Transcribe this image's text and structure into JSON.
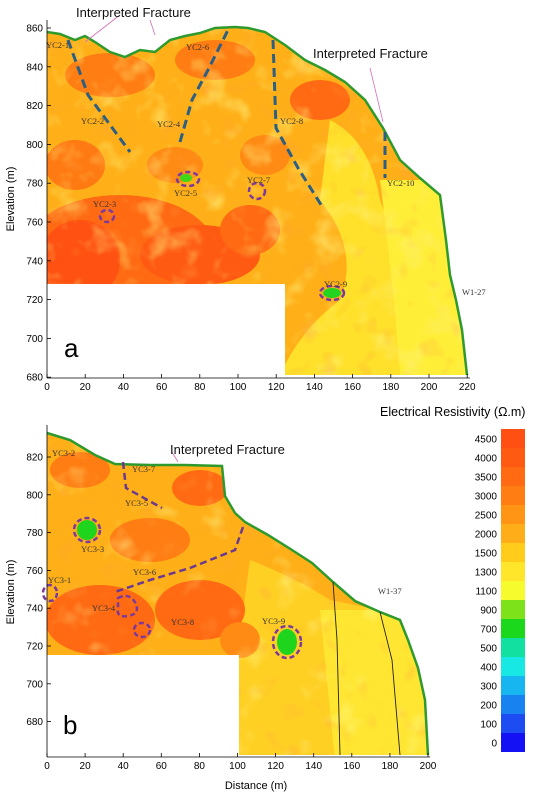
{
  "panel_a": {
    "letter": "a",
    "annotation_left": "Interpreted Fracture",
    "annotation_right": "Interpreted Fracture",
    "ylabel": "Elevation (m)",
    "yticks": [
      "860",
      "840",
      "820",
      "800",
      "780",
      "760",
      "740",
      "720",
      "700",
      "680"
    ],
    "xticks": [
      "0",
      "20",
      "40",
      "60",
      "80",
      "100",
      "120",
      "140",
      "160",
      "180",
      "200",
      "220"
    ],
    "labels": [
      "YC2-1",
      "YC2-2",
      "YC2-4",
      "YC2-6",
      "YC2-8",
      "YC2-5",
      "YC2-7",
      "YC2-3",
      "YC2-9",
      "YC2-10",
      "W1-27"
    ]
  },
  "panel_b": {
    "letter": "b",
    "annotation": "Interpreted Fracture",
    "ylabel": "Elevation (m)",
    "xlabel": "Distance (m)",
    "yticks": [
      "820",
      "800",
      "780",
      "760",
      "740",
      "720",
      "700",
      "680"
    ],
    "xticks": [
      "0",
      "20",
      "40",
      "60",
      "80",
      "100",
      "120",
      "140",
      "160",
      "180",
      "200"
    ],
    "labels": [
      "YC3-2",
      "YC3-7",
      "YC3-5",
      "YC3-3",
      "YC3-6",
      "YC3-1",
      "YC3-4",
      "YC3-8",
      "YC3-9",
      "W1-37"
    ]
  },
  "legend": {
    "title": "Electrical Resistivity (Ω.m)",
    "entries": [
      {
        "label": "4500",
        "color": "#ff4f12"
      },
      {
        "label": "4000",
        "color": "#ff5a12"
      },
      {
        "label": "3500",
        "color": "#ff6a12"
      },
      {
        "label": "3000",
        "color": "#ff7d12"
      },
      {
        "label": "2500",
        "color": "#ff9415"
      },
      {
        "label": "2000",
        "color": "#ffad18"
      },
      {
        "label": "1500",
        "color": "#ffcc1c"
      },
      {
        "label": "1300",
        "color": "#ffe62a"
      },
      {
        "label": "1100",
        "color": "#f6fb2e"
      },
      {
        "label": "900",
        "color": "#7ee21a"
      },
      {
        "label": "700",
        "color": "#1bd81d"
      },
      {
        "label": "500",
        "color": "#12e0a0"
      },
      {
        "label": "400",
        "color": "#17e8e4"
      },
      {
        "label": "300",
        "color": "#17b6f0"
      },
      {
        "label": "200",
        "color": "#1883f0"
      },
      {
        "label": "100",
        "color": "#1c4cf2"
      },
      {
        "label": "0",
        "color": "#1412f5"
      }
    ]
  }
}
